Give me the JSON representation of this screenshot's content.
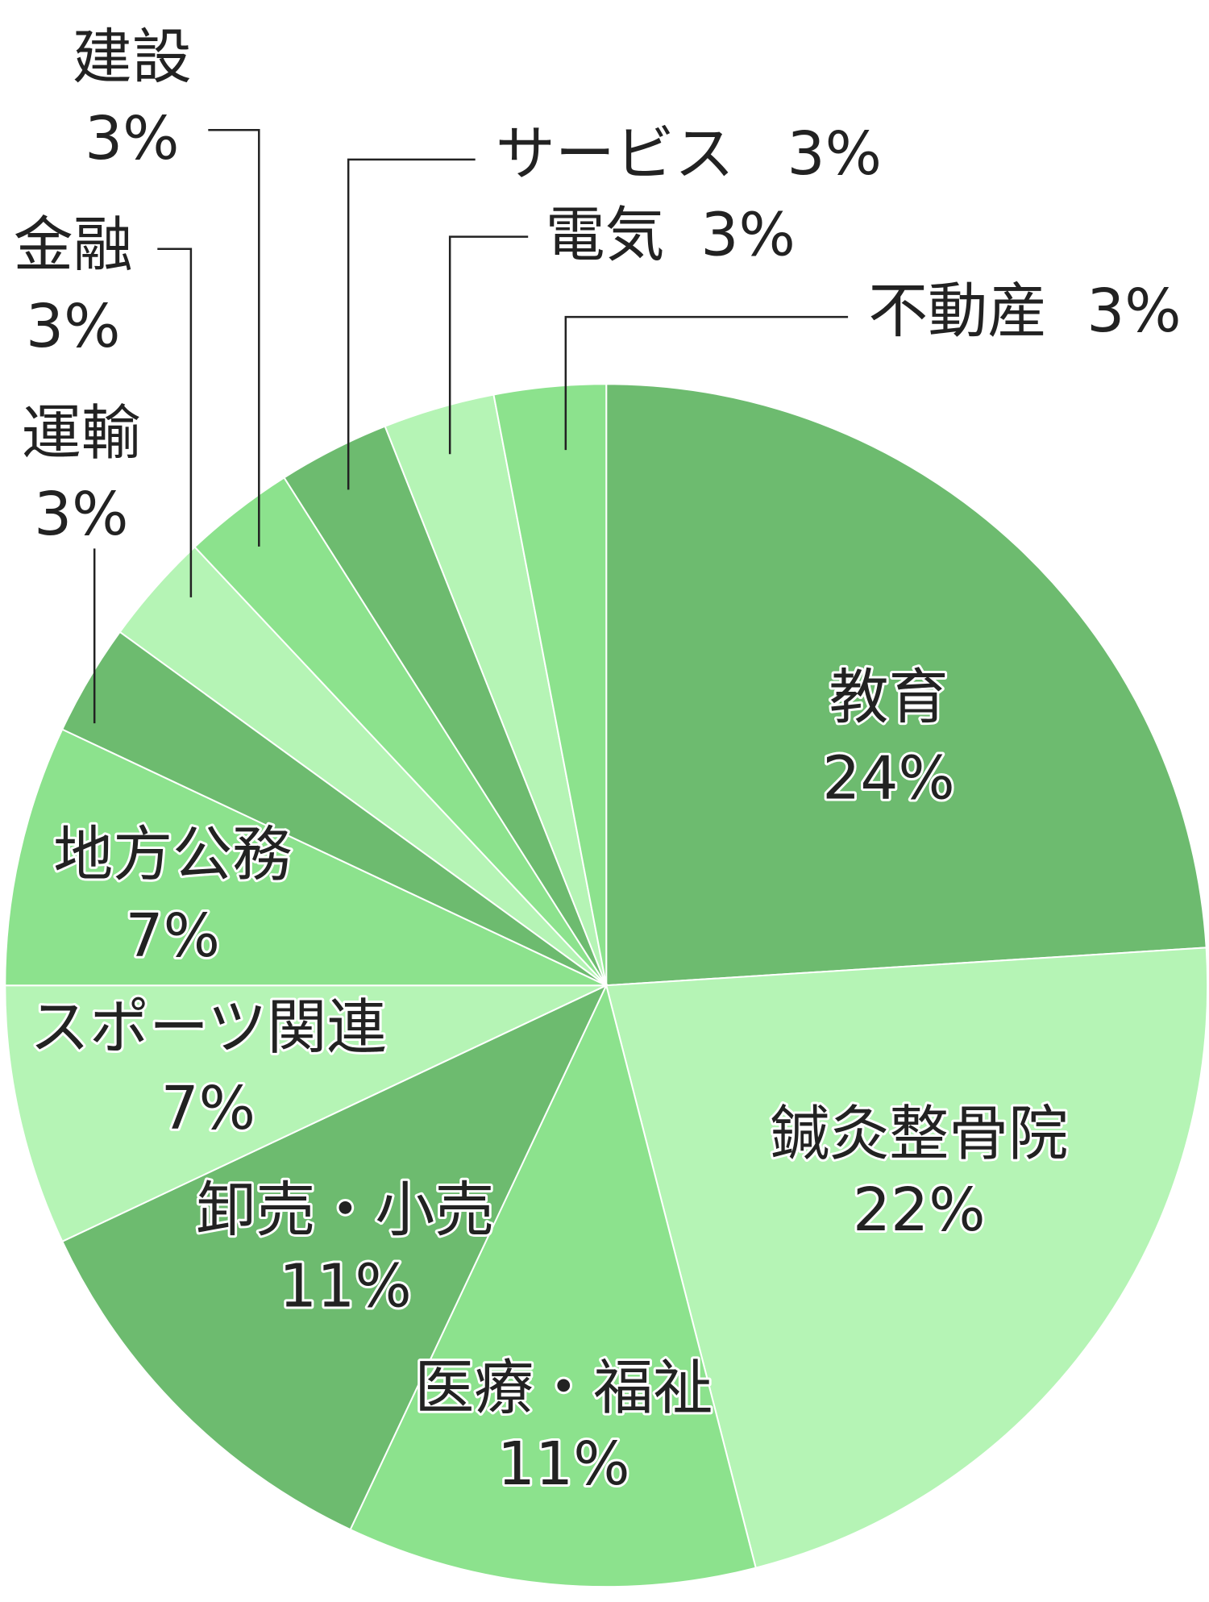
{
  "chart_data": {
    "type": "pie",
    "categories": [
      "教育",
      "鍼灸整骨院",
      "医療・福祉",
      "卸売・小売",
      "スポーツ関連",
      "地方公務",
      "運輸",
      "金融",
      "建設",
      "サービス",
      "電気",
      "不動産"
    ],
    "values": [
      24,
      22,
      11,
      11,
      7,
      7,
      3,
      3,
      3,
      3,
      3,
      3
    ],
    "value_labels": [
      "24%",
      "22%",
      "11%",
      "11%",
      "7%",
      "7%",
      "3%",
      "3%",
      "3%",
      "3%",
      "3%",
      "3%"
    ],
    "colors": [
      "#6dbb6f",
      "#b5f4b5",
      "#8ce28d",
      "#6dbb6f",
      "#b5f4b5",
      "#8ce28d",
      "#6dbb6f",
      "#b5f4b5",
      "#8ce28d",
      "#6dbb6f",
      "#b5f4b5",
      "#8ce28d"
    ]
  }
}
